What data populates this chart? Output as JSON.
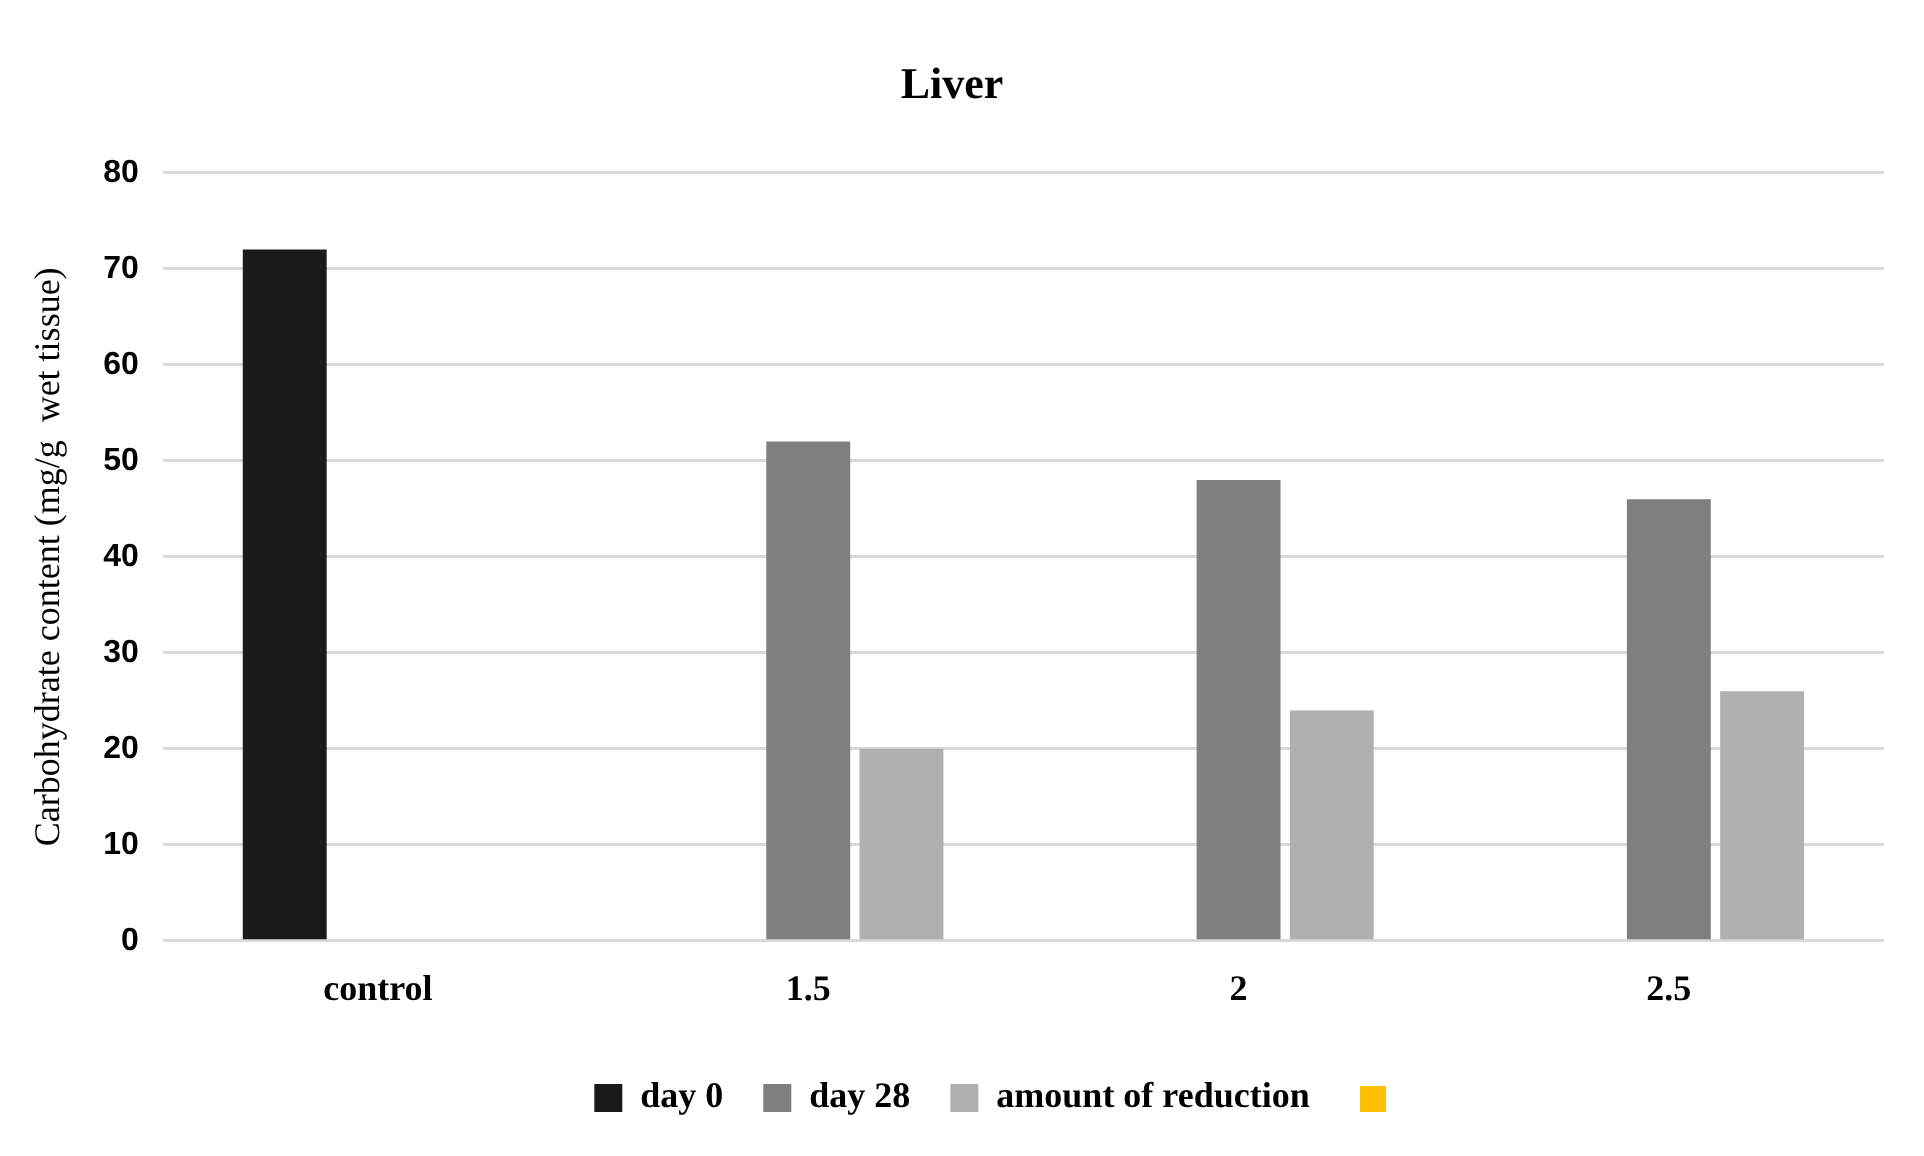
{
  "chart_data": {
    "type": "bar",
    "title": "Liver",
    "ylabel": "Carbohydrate content (mg/g  wet tissue)",
    "categories": [
      "control",
      "1.5",
      "2",
      "2.5"
    ],
    "series": [
      {
        "name": "day 0",
        "color": "#1a1a1a",
        "values": [
          72,
          null,
          null,
          null
        ]
      },
      {
        "name": "day 28",
        "color": "#7f7f7f",
        "values": [
          null,
          52,
          48,
          46
        ]
      },
      {
        "name": "amount of reduction",
        "color": "#b0b0b0",
        "values": [
          null,
          20,
          24,
          26
        ]
      }
    ],
    "ylim": [
      0,
      80
    ],
    "yticks": [
      0,
      10,
      20,
      30,
      40,
      50,
      60,
      70,
      80
    ],
    "grid": "y",
    "legend": "bottom"
  }
}
